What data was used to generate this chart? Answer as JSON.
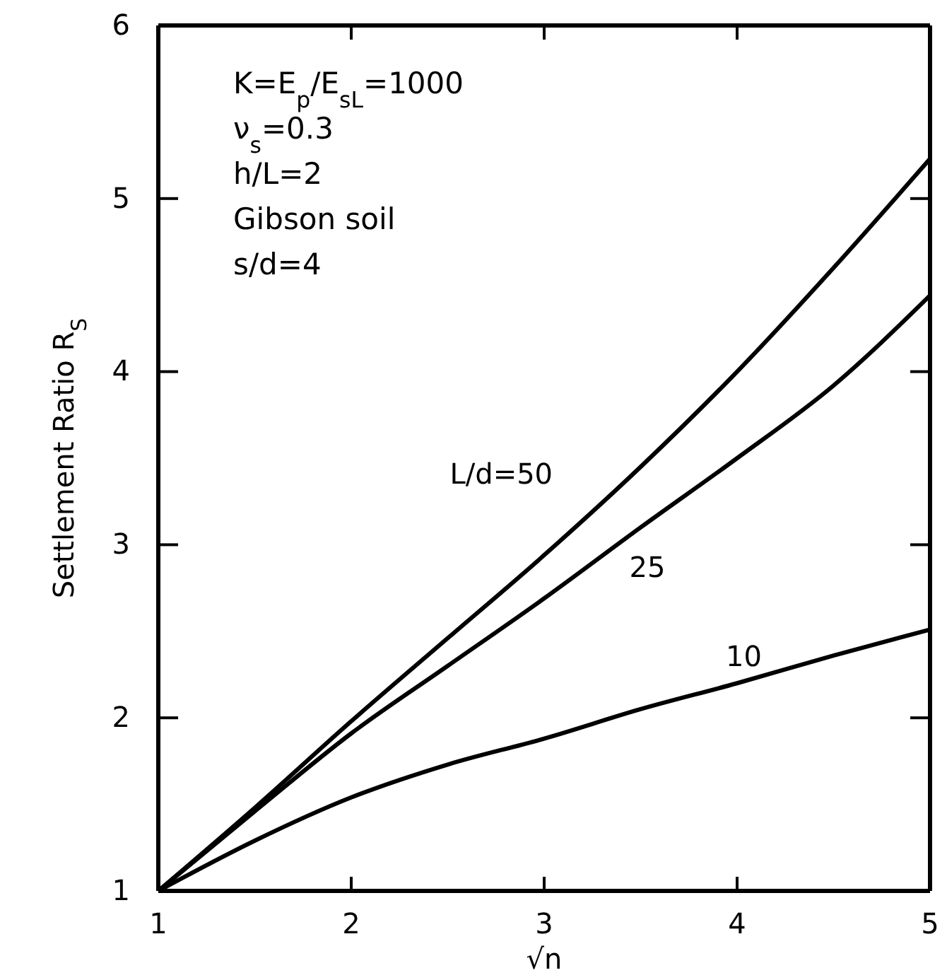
{
  "chart_data": {
    "type": "line",
    "xlabel": "√n",
    "ylabel": "Settlement Ratio R$_{S}$",
    "x": [
      1,
      1.5,
      2,
      2.5,
      3,
      3.5,
      4,
      4.5,
      5
    ],
    "series": [
      {
        "name": "L/d=50",
        "color": "#000000",
        "values": [
          1,
          1.48,
          1.98,
          2.46,
          2.94,
          3.45,
          4.0,
          4.6,
          5.23
        ]
      },
      {
        "name": "25",
        "color": "#000000",
        "values": [
          1,
          1.46,
          1.91,
          2.3,
          2.69,
          3.1,
          3.5,
          3.92,
          4.44
        ]
      },
      {
        "name": "10",
        "color": "#000000",
        "values": [
          1,
          1.29,
          1.54,
          1.73,
          1.88,
          2.05,
          2.2,
          2.36,
          2.51
        ]
      }
    ],
    "xlim": [
      1,
      5
    ],
    "ylim": [
      1,
      6
    ],
    "xticks": [
      1,
      2,
      3,
      4,
      5
    ],
    "yticks": [
      1,
      2,
      3,
      4,
      5,
      6
    ],
    "grid": false,
    "legend": false,
    "marker": "none",
    "line_style": "solid",
    "annotations": [
      "K=E$_{p}$/E$_{sL}$=1000",
      "ν$_{s}$=0.3",
      "h/L=2",
      "Gibson soil",
      "s/d=4"
    ]
  }
}
